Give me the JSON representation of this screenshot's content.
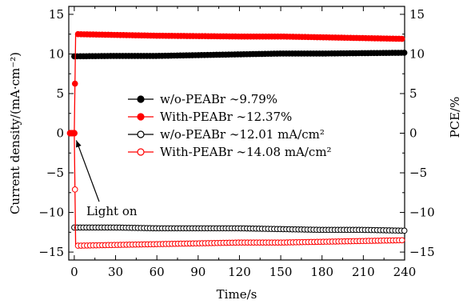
{
  "chart_data": {
    "type": "line",
    "title": "",
    "xlabel": "Time/s",
    "ylabel": "Current density/(mA·cm⁻²)",
    "y2label": "PCE/%",
    "xlim": [
      -4,
      240
    ],
    "ylim": [
      -16,
      16
    ],
    "y2lim": [
      -16,
      16
    ],
    "x_ticks": [
      0,
      30,
      60,
      90,
      120,
      150,
      180,
      210,
      240
    ],
    "y_ticks": [
      -15,
      -10,
      -5,
      0,
      5,
      10,
      15
    ],
    "y_tick_labels": [
      "−15",
      "−10",
      "−5",
      "0",
      "5",
      "10",
      "15"
    ],
    "y2_ticks": [
      -15,
      -10,
      -5,
      0,
      5,
      10,
      15
    ],
    "y2_tick_labels": [
      "−15",
      "−10",
      "−5",
      "0",
      "5",
      "10",
      "15"
    ],
    "grid": false,
    "legend_position": "center",
    "series": [
      {
        "name": "w/o-PEABr ~9.79%",
        "legend": {
          "name": "w/o-PEABr",
          "value": "∼9.79%"
        },
        "color": "#000000",
        "marker": "filled-circle",
        "axis": "right",
        "x": [
          0,
          30,
          60,
          90,
          120,
          150,
          180,
          210,
          240
        ],
        "y": [
          9.7,
          9.75,
          9.75,
          9.85,
          9.95,
          10.05,
          10.05,
          10.1,
          10.15
        ]
      },
      {
        "name": "With-PEABr ~12.37%",
        "legend": {
          "name": "With-PEABr",
          "value": "∼12.37%"
        },
        "color": "#ff0000",
        "marker": "filled-circle",
        "axis": "right",
        "x": [
          -3,
          0,
          1,
          30,
          60,
          90,
          120,
          150,
          180,
          210,
          240
        ],
        "y": [
          0,
          0,
          12.5,
          12.4,
          12.3,
          12.25,
          12.2,
          12.2,
          12.1,
          12.0,
          11.9
        ]
      },
      {
        "name": "w/o-PEABr ~12.01 mA/cm²",
        "legend": {
          "name": "w/o-PEABr",
          "value": "∼12.01 mA/cm²"
        },
        "color": "#000000",
        "marker": "open-circle",
        "axis": "left",
        "x": [
          0,
          30,
          60,
          90,
          120,
          150,
          180,
          210,
          240
        ],
        "y": [
          -11.9,
          -11.9,
          -12.0,
          -12.0,
          -12.0,
          -12.1,
          -12.2,
          -12.2,
          -12.3
        ]
      },
      {
        "name": "With-PEABr ~14.08 mA/cm²",
        "legend": {
          "name": "With-PEABr",
          "value": "∼14.08 mA/cm²"
        },
        "color": "#ff0000",
        "marker": "open-circle",
        "axis": "left",
        "x": [
          -3,
          0,
          1,
          30,
          60,
          90,
          120,
          150,
          180,
          210,
          240
        ],
        "y": [
          0,
          0,
          -14.2,
          -14.1,
          -14.0,
          -13.9,
          -13.8,
          -13.8,
          -13.7,
          -13.6,
          -13.5
        ]
      }
    ],
    "annotations": [
      {
        "text": "Light on",
        "arrow_to": {
          "x": -2,
          "y": -0.3
        }
      }
    ]
  }
}
